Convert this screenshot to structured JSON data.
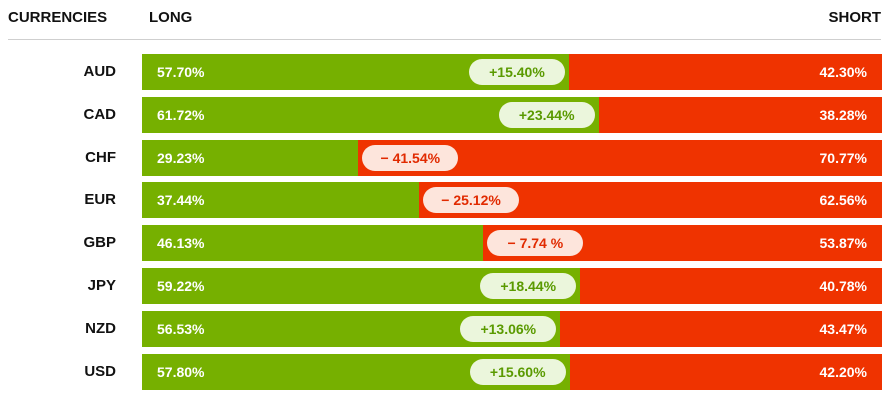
{
  "header": {
    "currencies": "CURRENCIES",
    "long": "LONG",
    "short": "SHORT"
  },
  "colors": {
    "long": "#76b000",
    "short": "#ef3300",
    "pill_pos_text": "#5a9a00",
    "pill_neg_text": "#e12a00"
  },
  "chart_data": {
    "type": "bar",
    "categories": [
      "AUD",
      "CAD",
      "CHF",
      "EUR",
      "GBP",
      "JPY",
      "NZD",
      "USD"
    ],
    "series": [
      {
        "name": "LONG",
        "values": [
          57.7,
          61.72,
          29.23,
          37.44,
          46.13,
          59.22,
          56.53,
          57.8
        ]
      },
      {
        "name": "SHORT",
        "values": [
          42.3,
          38.28,
          70.77,
          62.56,
          53.87,
          40.78,
          43.47,
          42.2
        ]
      }
    ],
    "long_labels": [
      "57.70%",
      "61.72%",
      "29.23%",
      "37.44%",
      "46.13%",
      "59.22%",
      "56.53%",
      "57.80%"
    ],
    "short_labels": [
      "42.30%",
      "38.28%",
      "70.77%",
      "62.56%",
      "53.87%",
      "40.78%",
      "43.47%",
      "42.20%"
    ],
    "net_labels": [
      "+15.40%",
      "+23.44%",
      "− 41.54%",
      "− 25.12%",
      "− 7.74 %",
      "+18.44%",
      "+13.06%",
      "+15.60%"
    ],
    "net_values": [
      15.4,
      23.44,
      -41.54,
      -25.12,
      -7.74,
      18.44,
      13.06,
      15.6
    ],
    "stacked": true,
    "orientation": "horizontal",
    "xlim": [
      0,
      100
    ]
  }
}
